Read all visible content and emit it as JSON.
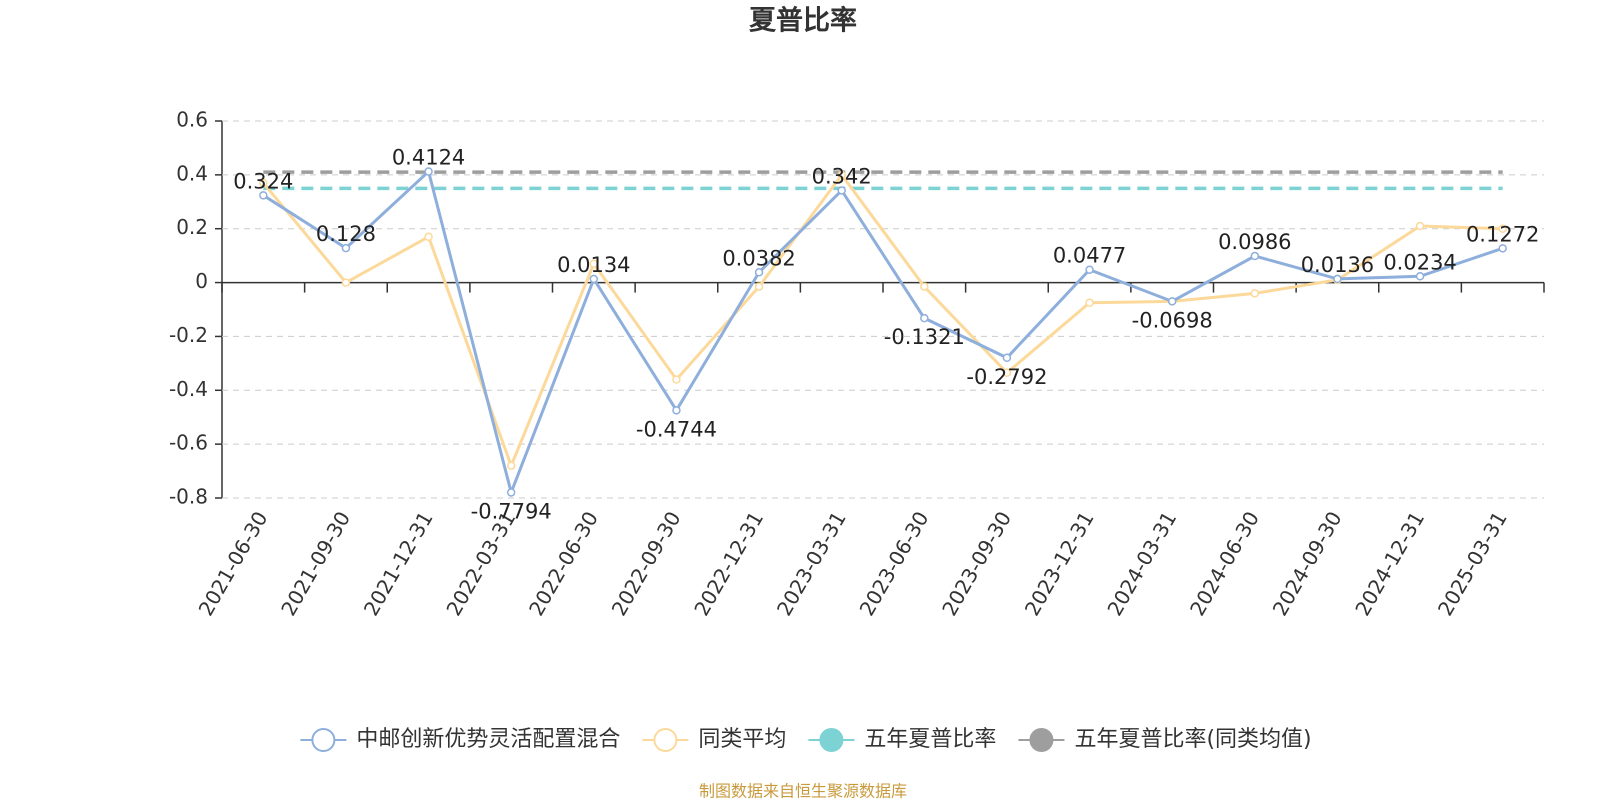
{
  "chart_data": {
    "type": "line",
    "title": "夏普比率",
    "categories": [
      "2021-06-30",
      "2021-09-30",
      "2021-12-31",
      "2022-03-31",
      "2022-06-30",
      "2022-09-30",
      "2022-12-31",
      "2023-03-31",
      "2023-06-30",
      "2023-09-30",
      "2023-12-31",
      "2024-03-31",
      "2024-06-30",
      "2024-09-30",
      "2024-12-31",
      "2025-03-31"
    ],
    "series": [
      {
        "name": "中邮创新优势灵活配置混合",
        "color": "#8eaedc",
        "values": [
          0.324,
          0.128,
          0.4124,
          -0.7794,
          0.0134,
          -0.4744,
          0.0382,
          0.342,
          -0.1321,
          -0.2792,
          0.0477,
          -0.0698,
          0.0986,
          0.0136,
          0.0234,
          0.1272
        ],
        "data_labels": true
      },
      {
        "name": "同类平均",
        "color": "#fcd99a",
        "values": [
          0.37,
          0.0,
          0.17,
          -0.68,
          0.07,
          -0.36,
          -0.015,
          0.4,
          -0.015,
          -0.335,
          -0.075,
          -0.07,
          -0.04,
          0.01,
          0.21,
          0.2
        ]
      }
    ],
    "reference_lines": [
      {
        "name": "五年夏普比率",
        "color": "#7dd3d3",
        "value": 0.35
      },
      {
        "name": "五年夏普比率(同类均值)",
        "color": "#9e9e9e",
        "value": 0.41
      }
    ],
    "ylim": [
      -0.8,
      0.6
    ],
    "yticks": [
      0.6,
      0.4,
      0.2,
      0,
      -0.2,
      -0.4,
      -0.6,
      -0.8
    ],
    "grid": true,
    "legend": "bottom",
    "source": "制图数据来自恒生聚源数据库"
  }
}
